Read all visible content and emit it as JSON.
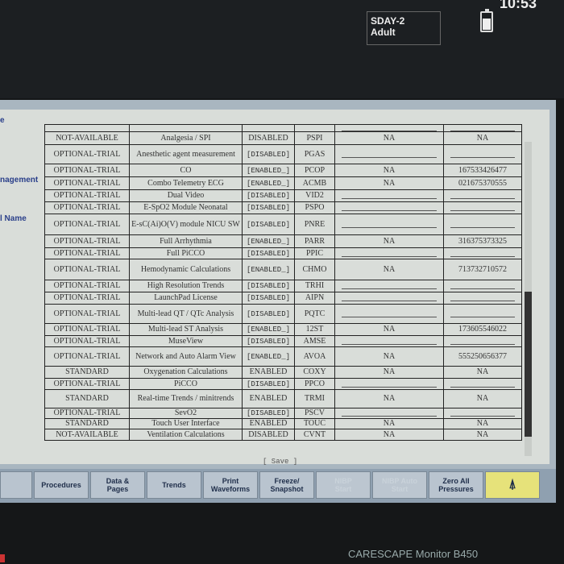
{
  "header": {
    "patient_category": "SDAY-2",
    "patient_type": "Adult",
    "time": "10:53",
    "battery_icon": "battery-icon"
  },
  "side_labels": [
    "e",
    "nagement",
    "l Name"
  ],
  "table": {
    "rows": [
      [
        "",
        "",
        "",
        "",
        "",
        ""
      ],
      [
        "NOT-AVAILABLE",
        "Analgesia / SPI",
        "DISABLED",
        "PSPI",
        "NA",
        "NA"
      ],
      [
        "OPTIONAL-TRIAL",
        "Anesthetic agent measurement",
        "[DISABLED]",
        "PGAS",
        "",
        ""
      ],
      [
        "OPTIONAL-TRIAL",
        "CO",
        "[ENABLED_]",
        "PCOP",
        "NA",
        "167533426477"
      ],
      [
        "OPTIONAL-TRIAL",
        "Combo Telemetry ECG",
        "[ENABLED_]",
        "ACMB",
        "NA",
        "021675370555"
      ],
      [
        "OPTIONAL-TRIAL",
        "Dual Video",
        "[DISABLED]",
        "VID2",
        "",
        ""
      ],
      [
        "OPTIONAL-TRIAL",
        "E-SpO2 Module Neonatal",
        "[DISABLED]",
        "PSPO",
        "",
        ""
      ],
      [
        "OPTIONAL-TRIAL",
        "E-sC(Ai)O(V) module NICU SW",
        "[DISABLED]",
        "PNRE",
        "",
        ""
      ],
      [
        "OPTIONAL-TRIAL",
        "Full Arrhythmia",
        "[ENABLED_]",
        "PARR",
        "NA",
        "316375373325"
      ],
      [
        "OPTIONAL-TRIAL",
        "Full PiCCO",
        "[DISABLED]",
        "PPIC",
        "",
        ""
      ],
      [
        "OPTIONAL-TRIAL",
        "Hemodynamic Calculations",
        "[ENABLED_]",
        "CHMO",
        "NA",
        "713732710572"
      ],
      [
        "OPTIONAL-TRIAL",
        "High Resolution Trends",
        "[DISABLED]",
        "TRHI",
        "",
        ""
      ],
      [
        "OPTIONAL-TRIAL",
        "LaunchPad License",
        "[DISABLED]",
        "AIPN",
        "",
        ""
      ],
      [
        "OPTIONAL-TRIAL",
        "Multi-lead QT / QTc Analysis",
        "[DISABLED]",
        "PQTC",
        "",
        ""
      ],
      [
        "OPTIONAL-TRIAL",
        "Multi-lead ST Analysis",
        "[ENABLED_]",
        "12ST",
        "NA",
        "173605546022"
      ],
      [
        "OPTIONAL-TRIAL",
        "MuseView",
        "[DISABLED]",
        "AMSE",
        "",
        ""
      ],
      [
        "OPTIONAL-TRIAL",
        "Network and Auto Alarm View",
        "[ENABLED_]",
        "AVOA",
        "NA",
        "555250656377"
      ],
      [
        "STANDARD",
        "Oxygenation Calculations",
        "ENABLED",
        "COXY",
        "NA",
        "NA"
      ],
      [
        "OPTIONAL-TRIAL",
        "PiCCO",
        "[DISABLED]",
        "PPCO",
        "",
        ""
      ],
      [
        "STANDARD",
        "Real-time Trends / minitrends",
        "ENABLED",
        "TRMI",
        "NA",
        "NA"
      ],
      [
        "OPTIONAL-TRIAL",
        "SevO2",
        "[DISABLED]",
        "PSCV",
        "",
        ""
      ],
      [
        "STANDARD",
        "Touch User Interface",
        "ENABLED",
        "TOUC",
        "NA",
        "NA"
      ],
      [
        "NOT-AVAILABLE",
        "Ventilation Calculations",
        "DISABLED",
        "CVNT",
        "NA",
        "NA"
      ]
    ]
  },
  "save_label": "[ Save ]",
  "buttons": [
    {
      "label": "",
      "enabled": true
    },
    {
      "label": "Procedures",
      "enabled": true
    },
    {
      "label": "Data &\nPages",
      "enabled": true
    },
    {
      "label": "Trends",
      "enabled": true
    },
    {
      "label": "Print\nWaveforms",
      "enabled": true
    },
    {
      "label": "Freeze/\nSnapshot",
      "enabled": true
    },
    {
      "label": "NIBP\nStart",
      "enabled": false
    },
    {
      "label": "NIBP Auto\nStart",
      "enabled": false
    },
    {
      "label": "Zero All\nPressures",
      "enabled": true
    },
    {
      "label": "⍋",
      "enabled": true,
      "icon": "alarm-bell-icon",
      "color": "#e6e27a"
    }
  ],
  "brand": "CARESCAPE Monitor B450"
}
